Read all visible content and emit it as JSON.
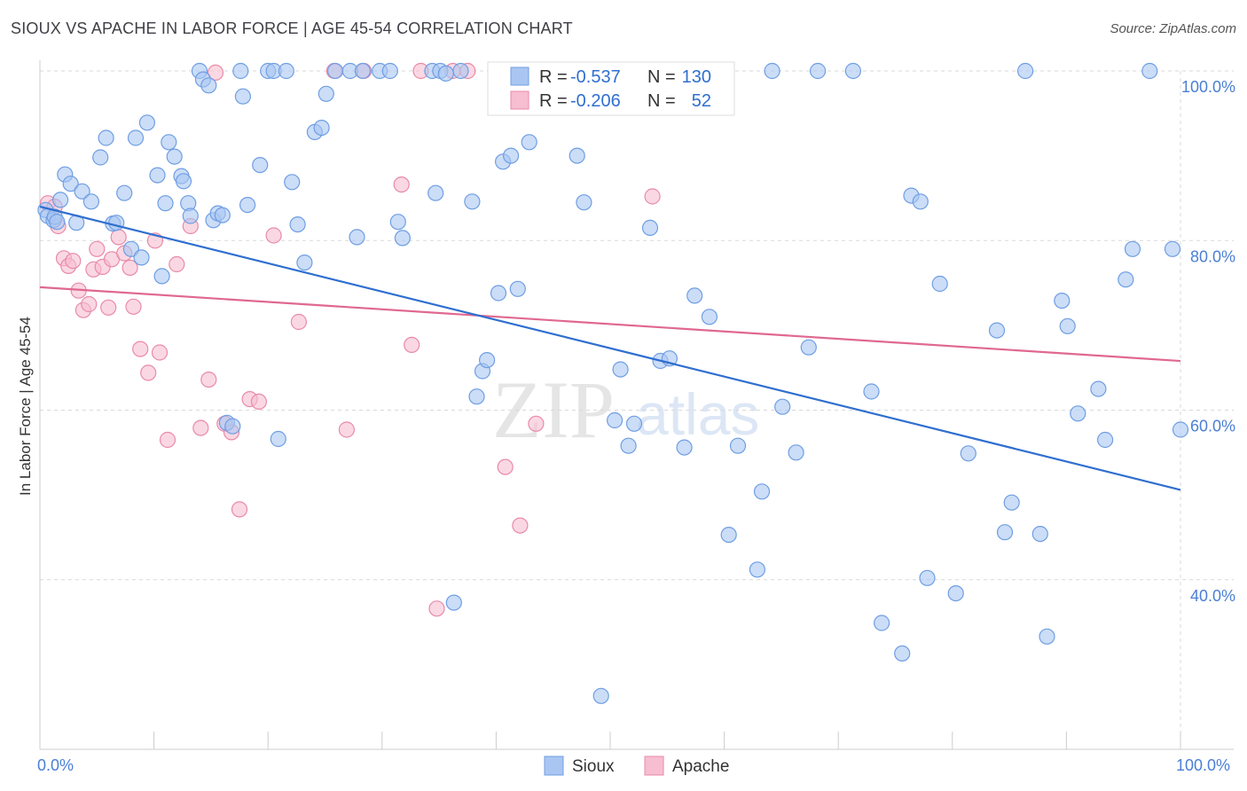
{
  "header": {
    "title": "SIOUX VS APACHE IN LABOR FORCE | AGE 45-54 CORRELATION CHART",
    "source": "Source: ZipAtlas.com"
  },
  "watermark": {
    "zip": "ZIP",
    "atlas": "atlas"
  },
  "legend": {
    "rows": [
      {
        "r_label": "R =",
        "r_value": "-0.537",
        "n_label": "N =",
        "n_value": "130"
      },
      {
        "r_label": "R =",
        "r_value": "-0.206",
        "n_label": "N =",
        "n_value": "52"
      }
    ],
    "bottom": [
      "Sioux",
      "Apache"
    ]
  },
  "colors": {
    "sioux_fill": "#a9c6f2",
    "sioux_stroke": "#6f9ee3",
    "sioux_line": "#2f6fd0",
    "apache_fill": "#f6bed0",
    "apache_stroke": "#e98aa9",
    "apache_line": "#e0688f",
    "grid": "#d9d9d9",
    "tick_text": "#4a7fd4",
    "value_text": "#2f6fd0"
  },
  "chart_data": {
    "type": "scatter",
    "title": "SIOUX VS APACHE IN LABOR FORCE | AGE 45-54 CORRELATION CHART",
    "xlabel": "",
    "ylabel": "In Labor Force | Age 45-54",
    "xlim": [
      0,
      100
    ],
    "ylim": [
      20,
      100
    ],
    "x_tick_labels": [
      "0.0%",
      "100.0%"
    ],
    "y_ticks": [
      40,
      60,
      80,
      100
    ],
    "y_tick_labels": [
      "40.0%",
      "60.0%",
      "80.0%",
      "100.0%"
    ],
    "grid": true,
    "series": [
      {
        "name": "Sioux",
        "r": -0.537,
        "n": 130,
        "trend": {
          "x": [
            0,
            100
          ],
          "y": [
            84.0,
            50.6
          ]
        },
        "points": [
          [
            0.5,
            83.6
          ],
          [
            0.7,
            82.9
          ],
          [
            1.2,
            82.4
          ],
          [
            1.3,
            82.8
          ],
          [
            1.5,
            82.2
          ],
          [
            1.8,
            84.8
          ],
          [
            2.2,
            87.8
          ],
          [
            2.7,
            86.7
          ],
          [
            3.2,
            82.1
          ],
          [
            3.7,
            85.8
          ],
          [
            4.5,
            84.6
          ],
          [
            5.3,
            89.8
          ],
          [
            5.8,
            92.1
          ],
          [
            6.4,
            82.0
          ],
          [
            6.7,
            82.1
          ],
          [
            7.4,
            85.6
          ],
          [
            8.0,
            79.0
          ],
          [
            8.4,
            92.1
          ],
          [
            8.9,
            78.0
          ],
          [
            9.4,
            93.9
          ],
          [
            10.3,
            87.7
          ],
          [
            10.7,
            75.8
          ],
          [
            11.0,
            84.4
          ],
          [
            11.3,
            91.6
          ],
          [
            11.8,
            89.9
          ],
          [
            12.4,
            87.6
          ],
          [
            12.6,
            87.0
          ],
          [
            13.0,
            84.4
          ],
          [
            13.2,
            82.9
          ],
          [
            14.0,
            100.0
          ],
          [
            14.3,
            99.0
          ],
          [
            14.8,
            98.3
          ],
          [
            15.2,
            82.4
          ],
          [
            15.6,
            83.2
          ],
          [
            16.0,
            83.0
          ],
          [
            16.4,
            58.5
          ],
          [
            16.9,
            58.1
          ],
          [
            17.6,
            100.0
          ],
          [
            17.8,
            97.0
          ],
          [
            18.2,
            84.2
          ],
          [
            19.3,
            88.9
          ],
          [
            20.0,
            100.0
          ],
          [
            20.5,
            100.0
          ],
          [
            20.9,
            56.6
          ],
          [
            21.6,
            100.0
          ],
          [
            22.1,
            86.9
          ],
          [
            22.6,
            81.9
          ],
          [
            23.2,
            77.4
          ],
          [
            24.1,
            92.8
          ],
          [
            24.7,
            93.3
          ],
          [
            25.1,
            97.3
          ],
          [
            25.9,
            100.0
          ],
          [
            27.2,
            100.0
          ],
          [
            27.8,
            80.4
          ],
          [
            28.3,
            100.0
          ],
          [
            29.8,
            100.0
          ],
          [
            30.7,
            100.0
          ],
          [
            31.4,
            82.2
          ],
          [
            31.8,
            80.3
          ],
          [
            34.4,
            100.0
          ],
          [
            34.7,
            85.6
          ],
          [
            35.1,
            100.0
          ],
          [
            35.6,
            99.7
          ],
          [
            36.3,
            37.3
          ],
          [
            36.9,
            100.0
          ],
          [
            37.9,
            84.6
          ],
          [
            38.3,
            61.6
          ],
          [
            38.8,
            64.6
          ],
          [
            39.2,
            65.9
          ],
          [
            40.2,
            73.8
          ],
          [
            40.6,
            89.3
          ],
          [
            41.3,
            90.0
          ],
          [
            41.9,
            74.3
          ],
          [
            42.9,
            91.6
          ],
          [
            43.6,
            100.0
          ],
          [
            45.3,
            100.0
          ],
          [
            47.1,
            90.0
          ],
          [
            47.7,
            84.5
          ],
          [
            49.2,
            26.3
          ],
          [
            50.4,
            58.8
          ],
          [
            50.9,
            64.8
          ],
          [
            51.6,
            55.8
          ],
          [
            52.1,
            58.4
          ],
          [
            53.5,
            81.5
          ],
          [
            54.4,
            65.8
          ],
          [
            55.2,
            66.1
          ],
          [
            56.5,
            55.6
          ],
          [
            57.4,
            73.5
          ],
          [
            58.7,
            71.0
          ],
          [
            60.4,
            45.3
          ],
          [
            61.2,
            55.8
          ],
          [
            62.9,
            41.2
          ],
          [
            63.3,
            50.4
          ],
          [
            64.2,
            100.0
          ],
          [
            65.1,
            60.4
          ],
          [
            66.3,
            55.0
          ],
          [
            67.4,
            67.4
          ],
          [
            68.2,
            100.0
          ],
          [
            71.3,
            100.0
          ],
          [
            72.9,
            62.2
          ],
          [
            73.8,
            34.9
          ],
          [
            75.6,
            31.3
          ],
          [
            76.4,
            85.3
          ],
          [
            77.2,
            84.6
          ],
          [
            77.8,
            40.2
          ],
          [
            78.9,
            74.9
          ],
          [
            80.3,
            38.4
          ],
          [
            81.4,
            54.9
          ],
          [
            83.9,
            69.4
          ],
          [
            84.6,
            45.6
          ],
          [
            85.2,
            49.1
          ],
          [
            86.4,
            100.0
          ],
          [
            87.7,
            45.4
          ],
          [
            88.3,
            33.3
          ],
          [
            89.6,
            72.9
          ],
          [
            90.1,
            69.9
          ],
          [
            91.0,
            59.6
          ],
          [
            92.8,
            62.5
          ],
          [
            93.4,
            56.5
          ],
          [
            95.2,
            75.4
          ],
          [
            95.8,
            79.0
          ],
          [
            97.3,
            100.0
          ],
          [
            99.3,
            79.0
          ],
          [
            100.0,
            57.7
          ]
        ]
      },
      {
        "name": "Apache",
        "r": -0.206,
        "n": 52,
        "trend": {
          "x": [
            0,
            100
          ],
          "y": [
            74.5,
            65.8
          ]
        },
        "points": [
          [
            0.7,
            84.4
          ],
          [
            1.3,
            84.0
          ],
          [
            1.6,
            81.7
          ],
          [
            2.1,
            77.9
          ],
          [
            2.5,
            77.0
          ],
          [
            2.9,
            77.6
          ],
          [
            3.4,
            74.1
          ],
          [
            3.8,
            71.8
          ],
          [
            4.3,
            72.5
          ],
          [
            4.7,
            76.6
          ],
          [
            5.0,
            79.0
          ],
          [
            5.5,
            76.9
          ],
          [
            6.0,
            72.1
          ],
          [
            6.3,
            77.8
          ],
          [
            6.9,
            80.4
          ],
          [
            7.4,
            78.5
          ],
          [
            7.9,
            76.8
          ],
          [
            8.2,
            72.2
          ],
          [
            8.8,
            67.2
          ],
          [
            9.5,
            64.4
          ],
          [
            10.1,
            80.0
          ],
          [
            10.5,
            66.8
          ],
          [
            11.2,
            56.5
          ],
          [
            12.0,
            77.2
          ],
          [
            13.2,
            81.7
          ],
          [
            14.1,
            57.9
          ],
          [
            14.8,
            63.6
          ],
          [
            15.4,
            99.8
          ],
          [
            16.2,
            58.4
          ],
          [
            16.8,
            57.4
          ],
          [
            17.5,
            48.3
          ],
          [
            18.4,
            61.3
          ],
          [
            19.2,
            61.0
          ],
          [
            20.5,
            80.6
          ],
          [
            22.7,
            70.4
          ],
          [
            25.8,
            100.0
          ],
          [
            26.9,
            57.7
          ],
          [
            28.4,
            100.0
          ],
          [
            31.7,
            86.6
          ],
          [
            32.6,
            67.7
          ],
          [
            33.4,
            100.0
          ],
          [
            34.8,
            36.6
          ],
          [
            36.2,
            100.0
          ],
          [
            37.5,
            100.0
          ],
          [
            40.8,
            53.3
          ],
          [
            42.1,
            46.4
          ],
          [
            43.5,
            58.4
          ],
          [
            45.2,
            100.0
          ],
          [
            48.3,
            100.0
          ],
          [
            50.6,
            100.0
          ],
          [
            52.0,
            100.0
          ],
          [
            53.7,
            85.2
          ]
        ]
      }
    ]
  }
}
